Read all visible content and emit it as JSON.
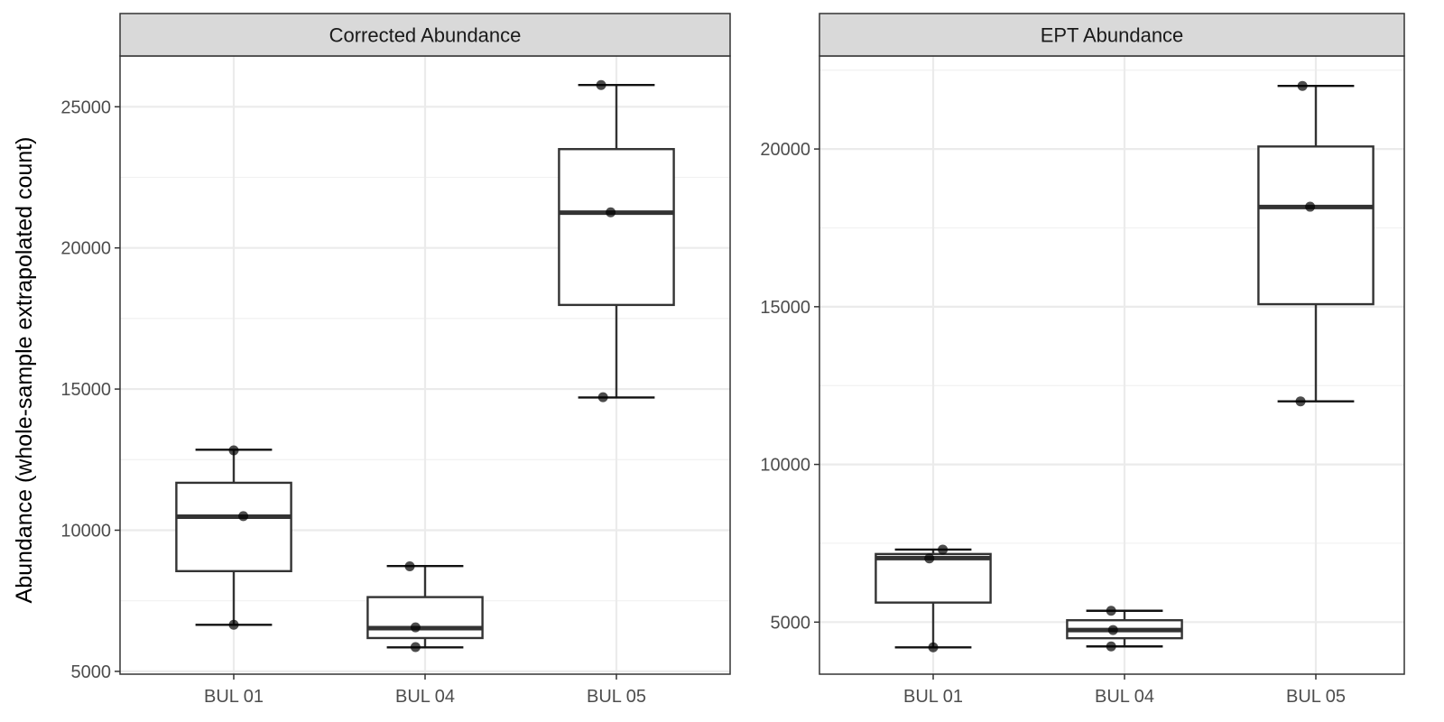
{
  "ylabel": "Abundance (whole-sample extrapolated count)",
  "chart_data": [
    {
      "type": "box",
      "title": "Corrected Abundance",
      "categories": [
        "BUL 01",
        "BUL 04",
        "BUL 05"
      ],
      "ylim": [
        4900,
        26800
      ],
      "yticks": [
        5000,
        10000,
        15000,
        20000,
        25000
      ],
      "grid": true,
      "boxes": [
        {
          "category": "BUL 01",
          "min": 6650,
          "q1": 8550,
          "median": 10480,
          "q3": 11680,
          "max": 12850
        },
        {
          "category": "BUL 04",
          "min": 5850,
          "q1": 6180,
          "median": 6530,
          "q3": 7630,
          "max": 8730
        },
        {
          "category": "BUL 05",
          "min": 14700,
          "q1": 17980,
          "median": 21250,
          "q3": 23500,
          "max": 25770
        }
      ],
      "points": [
        {
          "category": "BUL 01",
          "x_jitter": 0.0,
          "y": 12830
        },
        {
          "category": "BUL 01",
          "x_jitter": 0.05,
          "y": 10500
        },
        {
          "category": "BUL 01",
          "x_jitter": 0.0,
          "y": 6650
        },
        {
          "category": "BUL 04",
          "x_jitter": -0.08,
          "y": 8720
        },
        {
          "category": "BUL 04",
          "x_jitter": -0.05,
          "y": 6560
        },
        {
          "category": "BUL 04",
          "x_jitter": -0.05,
          "y": 5860
        },
        {
          "category": "BUL 05",
          "x_jitter": -0.08,
          "y": 25770
        },
        {
          "category": "BUL 05",
          "x_jitter": -0.03,
          "y": 21260
        },
        {
          "category": "BUL 05",
          "x_jitter": -0.07,
          "y": 14710
        }
      ]
    },
    {
      "type": "box",
      "title": "EPT Abundance",
      "categories": [
        "BUL 01",
        "BUL 04",
        "BUL 05"
      ],
      "ylim": [
        3350,
        22950
      ],
      "yticks": [
        5000,
        10000,
        15000,
        20000
      ],
      "grid": true,
      "boxes": [
        {
          "category": "BUL 01",
          "min": 4200,
          "q1": 5620,
          "median": 7030,
          "q3": 7160,
          "max": 7300
        },
        {
          "category": "BUL 04",
          "min": 4230,
          "q1": 4490,
          "median": 4750,
          "q3": 5060,
          "max": 5360
        },
        {
          "category": "BUL 05",
          "min": 12000,
          "q1": 15080,
          "median": 18160,
          "q3": 20080,
          "max": 22000
        }
      ],
      "points": [
        {
          "category": "BUL 01",
          "x_jitter": 0.05,
          "y": 7300
        },
        {
          "category": "BUL 01",
          "x_jitter": -0.02,
          "y": 7020
        },
        {
          "category": "BUL 01",
          "x_jitter": 0.0,
          "y": 4200
        },
        {
          "category": "BUL 04",
          "x_jitter": -0.07,
          "y": 5360
        },
        {
          "category": "BUL 04",
          "x_jitter": -0.06,
          "y": 4750
        },
        {
          "category": "BUL 04",
          "x_jitter": -0.07,
          "y": 4230
        },
        {
          "category": "BUL 05",
          "x_jitter": -0.07,
          "y": 22000
        },
        {
          "category": "BUL 05",
          "x_jitter": -0.03,
          "y": 18170
        },
        {
          "category": "BUL 05",
          "x_jitter": -0.08,
          "y": 12000
        }
      ]
    }
  ]
}
